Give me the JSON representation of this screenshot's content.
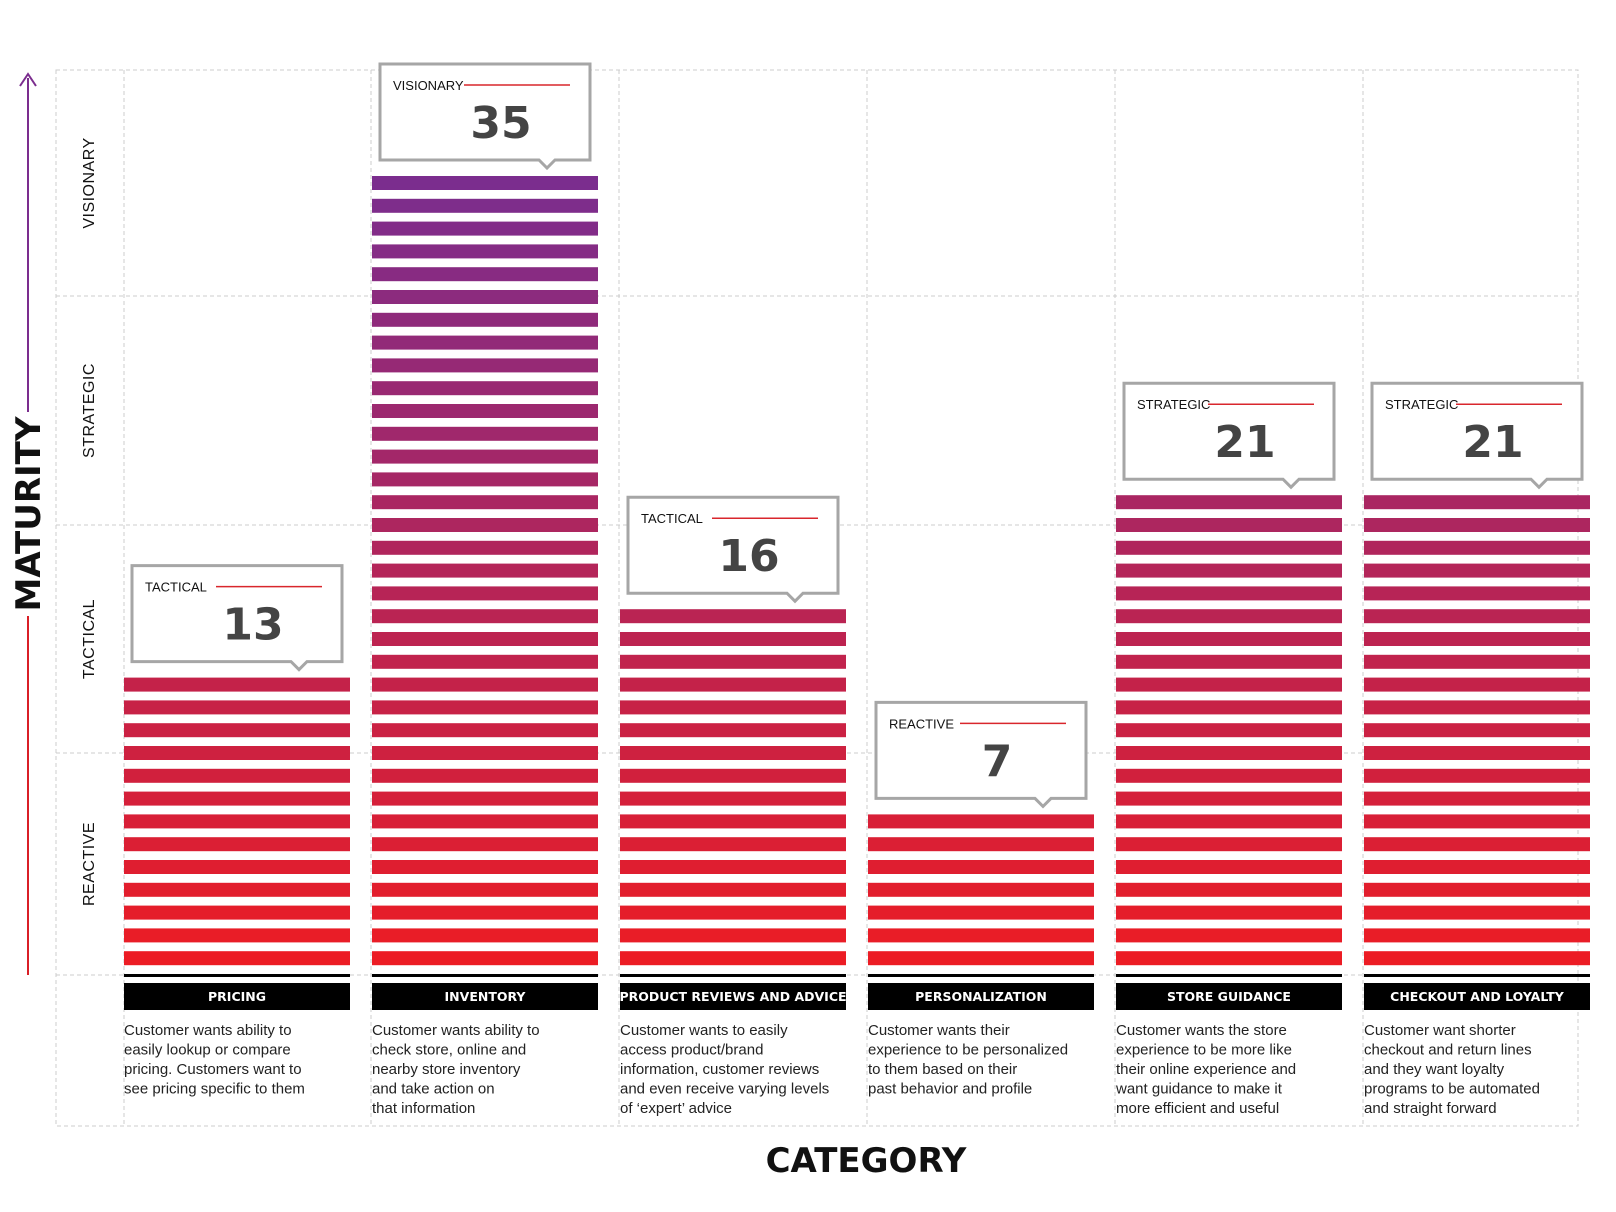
{
  "colors": {
    "low": "#ec1c24",
    "high": "#7b2d8e",
    "label_bg": "#000000",
    "grid": "#cccccc",
    "callout_border": "#a6a6a6",
    "callout_rule": "#d9262c"
  },
  "chart_data": {
    "type": "bar",
    "title": "",
    "xlabel": "CATEGORY",
    "ylabel": "MATURITY",
    "ylim": [
      0,
      35
    ],
    "maturity_levels": [
      "REACTIVE",
      "TACTICAL",
      "STRATEGIC",
      "VISIONARY"
    ],
    "categories": [
      "PRICING",
      "INVENTORY",
      "PRODUCT REVIEWS AND ADVICE",
      "PERSONALIZATION",
      "STORE GUIDANCE",
      "CHECKOUT AND LOYALTY"
    ],
    "values": [
      13,
      35,
      16,
      7,
      21,
      21
    ],
    "value_labels": [
      "13",
      "35",
      "16",
      "7",
      "21",
      "21"
    ],
    "levels": [
      "TACTICAL",
      "VISIONARY",
      "TACTICAL",
      "REACTIVE",
      "STRATEGIC",
      "STRATEGIC"
    ],
    "descriptions": [
      [
        "Customer wants ability to",
        "easily lookup or compare",
        "pricing. Customers want to",
        "see pricing specific to them"
      ],
      [
        "Customer wants ability to",
        "check store, online and",
        "nearby store inventory",
        "and take action on",
        "that information"
      ],
      [
        "Customer wants to easily",
        "access product/brand",
        "information, customer reviews",
        "and even receive varying levels",
        "of ‘expert’ advice"
      ],
      [
        "Customer wants their",
        "experience to be personalized",
        "to them based on their",
        "past behavior and profile"
      ],
      [
        "Customer wants the store",
        "experience to be more like",
        "their online experience and",
        "want guidance to make it",
        "more efficient and useful"
      ],
      [
        "Customer want shorter",
        "checkout and return lines",
        "and they want loyalty",
        "programs to be automated",
        "and straight forward"
      ]
    ]
  }
}
